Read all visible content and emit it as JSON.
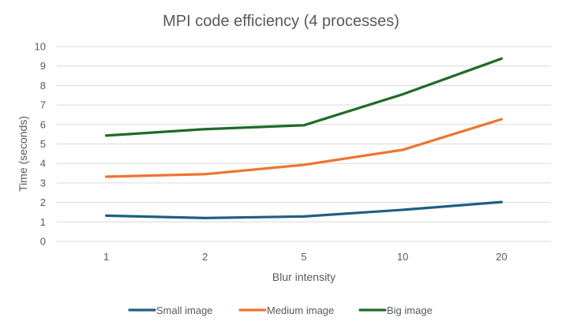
{
  "chart_data": {
    "type": "line",
    "title": "MPI code efficiency (4 processes)",
    "xlabel": "Blur intensity",
    "ylabel": "Time (seconds)",
    "categories": [
      "1",
      "2",
      "5",
      "10",
      "20"
    ],
    "ylim": [
      0,
      10
    ],
    "yticks": [
      "0",
      "1",
      "2",
      "3",
      "4",
      "5",
      "6",
      "7",
      "8",
      "9",
      "10"
    ],
    "grid": true,
    "legend_position": "bottom",
    "series": [
      {
        "name": "Small image",
        "color": "#1f5f84",
        "values": [
          1.32,
          1.2,
          1.28,
          1.62,
          2.02
        ]
      },
      {
        "name": "Medium image",
        "color": "#ed7430",
        "values": [
          3.32,
          3.45,
          3.93,
          4.7,
          6.27
        ]
      },
      {
        "name": "Big image",
        "color": "#1e6b2a",
        "values": [
          5.43,
          5.76,
          5.96,
          7.55,
          9.38
        ]
      }
    ]
  }
}
